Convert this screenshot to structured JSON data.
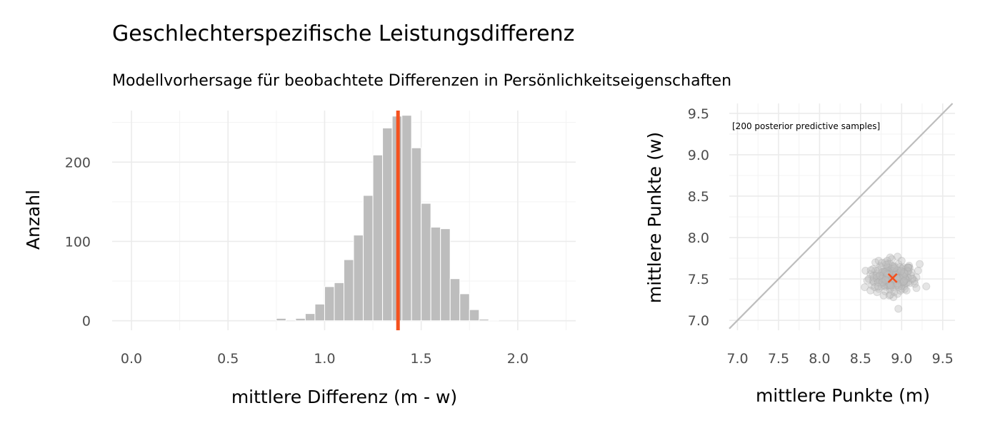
{
  "title": "Geschlechterspezifische Leistungsdifferenz",
  "subtitle": "Modellvorhersage für beobachtete Differenzen in Persönlichkeitseigenschaften",
  "chart_data": [
    {
      "type": "bar",
      "subtype": "histogram",
      "xlabel": "mittlere Differenz (m - w)",
      "ylabel": "Anzahl",
      "xlim": [
        -0.1,
        2.3
      ],
      "ylim": [
        -12,
        265
      ],
      "x_ticks": [
        "0.0",
        "0.5",
        "1.0",
        "1.5",
        "2.0"
      ],
      "y_ticks": [
        "0",
        "100",
        "200"
      ],
      "bin_width": 0.05,
      "bins": [
        {
          "x0": 0.75,
          "count": 3
        },
        {
          "x0": 0.8,
          "count": 0
        },
        {
          "x0": 0.85,
          "count": 3
        },
        {
          "x0": 0.9,
          "count": 9
        },
        {
          "x0": 0.95,
          "count": 21
        },
        {
          "x0": 1.0,
          "count": 43
        },
        {
          "x0": 1.05,
          "count": 48
        },
        {
          "x0": 1.1,
          "count": 77
        },
        {
          "x0": 1.15,
          "count": 108
        },
        {
          "x0": 1.2,
          "count": 158
        },
        {
          "x0": 1.25,
          "count": 209
        },
        {
          "x0": 1.3,
          "count": 243
        },
        {
          "x0": 1.35,
          "count": 258
        },
        {
          "x0": 1.4,
          "count": 259
        },
        {
          "x0": 1.45,
          "count": 218
        },
        {
          "x0": 1.5,
          "count": 148
        },
        {
          "x0": 1.55,
          "count": 118
        },
        {
          "x0": 1.6,
          "count": 116
        },
        {
          "x0": 1.65,
          "count": 53
        },
        {
          "x0": 1.7,
          "count": 34
        },
        {
          "x0": 1.75,
          "count": 14
        },
        {
          "x0": 1.8,
          "count": 2
        },
        {
          "x0": 1.85,
          "count": 1
        }
      ],
      "vline": {
        "x": 1.38,
        "color": "#f4511e"
      },
      "bar_color": "#bdbdbd"
    },
    {
      "type": "scatter",
      "xlabel": "mittlere Punkte (m)",
      "ylabel": "mittlere Punkte (w)",
      "xlim": [
        6.9,
        9.65
      ],
      "ylim": [
        6.88,
        9.62
      ],
      "x_ticks": [
        "7.0",
        "7.5",
        "8.0",
        "8.5",
        "9.0",
        "9.5"
      ],
      "y_ticks": [
        "7.0",
        "7.5",
        "8.0",
        "8.5",
        "9.0",
        "9.5"
      ],
      "annotation": "[200 posterior predictive samples]",
      "reference_line": "y = x",
      "observed_point": {
        "x": 8.89,
        "y": 7.51,
        "marker": "x",
        "color": "#f4511e"
      },
      "point_cloud": {
        "n": 200,
        "center_x": 8.9,
        "center_y": 7.52,
        "sd_x": 0.12,
        "sd_y": 0.08
      },
      "points": [
        {
          "x": 8.62,
          "y": 7.56
        },
        {
          "x": 8.6,
          "y": 7.5
        },
        {
          "x": 8.58,
          "y": 7.48
        },
        {
          "x": 8.64,
          "y": 7.42
        },
        {
          "x": 8.68,
          "y": 7.6
        },
        {
          "x": 8.7,
          "y": 7.52
        },
        {
          "x": 8.66,
          "y": 7.46
        },
        {
          "x": 8.72,
          "y": 7.38
        },
        {
          "x": 8.74,
          "y": 7.66
        },
        {
          "x": 8.76,
          "y": 7.58
        },
        {
          "x": 8.78,
          "y": 7.5
        },
        {
          "x": 8.75,
          "y": 7.44
        },
        {
          "x": 8.8,
          "y": 7.35
        },
        {
          "x": 8.8,
          "y": 7.7
        },
        {
          "x": 8.82,
          "y": 7.62
        },
        {
          "x": 8.84,
          "y": 7.55
        },
        {
          "x": 8.83,
          "y": 7.47
        },
        {
          "x": 8.86,
          "y": 7.4
        },
        {
          "x": 8.85,
          "y": 7.3
        },
        {
          "x": 8.88,
          "y": 7.74
        },
        {
          "x": 8.9,
          "y": 7.65
        },
        {
          "x": 8.9,
          "y": 7.58
        },
        {
          "x": 8.92,
          "y": 7.48
        },
        {
          "x": 8.93,
          "y": 7.42
        },
        {
          "x": 8.91,
          "y": 7.34
        },
        {
          "x": 8.95,
          "y": 7.77
        },
        {
          "x": 8.96,
          "y": 7.68
        },
        {
          "x": 8.97,
          "y": 7.6
        },
        {
          "x": 8.98,
          "y": 7.53
        },
        {
          "x": 8.99,
          "y": 7.45
        },
        {
          "x": 9.0,
          "y": 7.38
        },
        {
          "x": 9.02,
          "y": 7.64
        },
        {
          "x": 9.04,
          "y": 7.56
        },
        {
          "x": 9.05,
          "y": 7.49
        },
        {
          "x": 9.03,
          "y": 7.41
        },
        {
          "x": 9.07,
          "y": 7.6
        },
        {
          "x": 9.08,
          "y": 7.52
        },
        {
          "x": 9.1,
          "y": 7.45
        },
        {
          "x": 9.12,
          "y": 7.58
        },
        {
          "x": 9.14,
          "y": 7.5
        },
        {
          "x": 8.68,
          "y": 7.7
        },
        {
          "x": 8.72,
          "y": 7.72
        },
        {
          "x": 8.86,
          "y": 7.76
        },
        {
          "x": 9.0,
          "y": 7.72
        },
        {
          "x": 8.7,
          "y": 7.34
        },
        {
          "x": 8.78,
          "y": 7.3
        },
        {
          "x": 8.95,
          "y": 7.32
        },
        {
          "x": 9.06,
          "y": 7.36
        },
        {
          "x": 8.56,
          "y": 7.6
        },
        {
          "x": 8.55,
          "y": 7.4
        },
        {
          "x": 9.16,
          "y": 7.44
        },
        {
          "x": 9.2,
          "y": 7.6
        },
        {
          "x": 9.18,
          "y": 7.52
        },
        {
          "x": 8.9,
          "y": 7.28
        },
        {
          "x": 8.81,
          "y": 7.43
        },
        {
          "x": 8.87,
          "y": 7.6
        },
        {
          "x": 8.94,
          "y": 7.55
        },
        {
          "x": 8.79,
          "y": 7.56
        },
        {
          "x": 9.01,
          "y": 7.47
        },
        {
          "x": 8.65,
          "y": 7.54
        },
        {
          "x": 9.22,
          "y": 7.68
        },
        {
          "x": 9.3,
          "y": 7.41
        },
        {
          "x": 9.18,
          "y": 7.39
        },
        {
          "x": 8.96,
          "y": 7.14
        },
        {
          "x": 8.83,
          "y": 7.68
        },
        {
          "x": 8.73,
          "y": 7.48
        },
        {
          "x": 9.09,
          "y": 7.66
        },
        {
          "x": 8.62,
          "y": 7.36
        }
      ]
    }
  ]
}
